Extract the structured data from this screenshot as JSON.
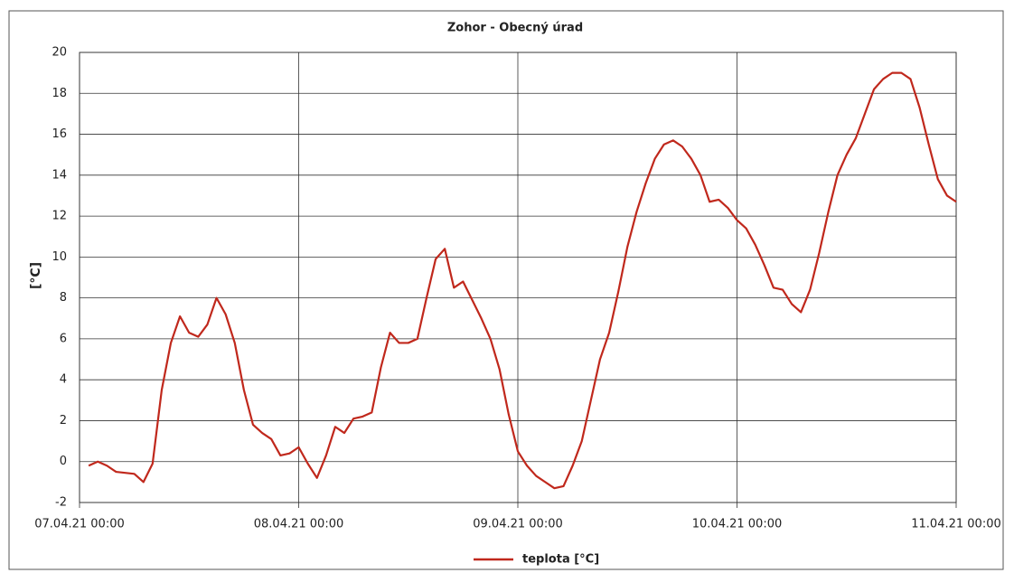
{
  "chart_data": {
    "type": "line",
    "title": "Zohor - Obecný úrad",
    "y_label": "[°C]",
    "x": [
      1,
      2,
      3,
      4,
      5,
      6,
      7,
      8,
      9,
      10,
      11,
      12,
      13,
      14,
      15,
      16,
      17,
      18,
      19,
      20,
      21,
      22,
      23,
      24,
      25,
      26,
      27,
      28,
      29,
      30,
      31,
      32,
      33,
      34,
      35,
      36,
      37,
      38,
      39,
      40,
      41,
      42,
      43,
      44,
      45,
      46,
      47,
      48,
      49,
      50,
      51,
      52,
      53,
      54,
      55,
      56,
      57,
      58,
      59,
      60,
      61,
      62,
      63,
      64,
      65,
      66,
      67,
      68,
      69,
      70,
      71,
      72,
      73,
      74,
      75,
      76,
      77,
      78,
      79,
      80,
      81,
      82,
      83,
      84,
      85,
      86,
      87,
      88,
      89,
      90,
      91,
      92,
      93,
      94,
      95,
      96
    ],
    "series": [
      {
        "name": "teplota [°C]",
        "color": "#c0281c",
        "values": [
          -0.2,
          0.0,
          -0.2,
          -0.5,
          -0.55,
          -0.6,
          -1.0,
          -0.1,
          3.5,
          5.8,
          7.1,
          6.3,
          6.1,
          6.7,
          8.0,
          7.2,
          5.8,
          3.5,
          1.8,
          1.4,
          1.1,
          0.3,
          0.4,
          0.7,
          -0.1,
          -0.8,
          0.3,
          1.7,
          1.4,
          2.1,
          2.2,
          2.4,
          4.6,
          6.3,
          5.8,
          5.8,
          6.0,
          8.0,
          9.9,
          10.4,
          8.5,
          8.8,
          7.9,
          7.0,
          6.0,
          4.5,
          2.3,
          0.5,
          -0.2,
          -0.7,
          -1.0,
          -1.3,
          -1.2,
          -0.2,
          1.0,
          3.0,
          5.0,
          6.3,
          8.3,
          10.5,
          12.2,
          13.6,
          14.8,
          15.5,
          15.7,
          15.4,
          14.8,
          14.0,
          12.7,
          12.8,
          12.4,
          11.8,
          11.4,
          10.6,
          9.6,
          8.5,
          8.4,
          7.7,
          7.3,
          8.4,
          10.2,
          12.2,
          14.0,
          15.0,
          15.8,
          17.0,
          18.2,
          18.7,
          19.0,
          19.0,
          18.7,
          17.3,
          15.5,
          13.8,
          13.0,
          12.7
        ]
      }
    ],
    "xlim": [
      0,
      96
    ],
    "xticks": [
      {
        "value": 0,
        "label": "07.04.21 00:00"
      },
      {
        "value": 24,
        "label": "08.04.21 00:00"
      },
      {
        "value": 48,
        "label": "09.04.21 00:00"
      },
      {
        "value": 72,
        "label": "10.04.21 00:00"
      },
      {
        "value": 96,
        "label": "11.04.21 00:00"
      }
    ],
    "ylim": [
      -2,
      20
    ],
    "yticks": [
      -2,
      0,
      2,
      4,
      6,
      8,
      10,
      12,
      14,
      16,
      18,
      20
    ],
    "grid": true,
    "legend": "bottom"
  }
}
